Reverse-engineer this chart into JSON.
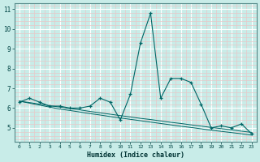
{
  "xlabel": "Humidex (Indice chaleur)",
  "bg_color": "#c8ece8",
  "line_color": "#006666",
  "major_grid_color": "#ffffff",
  "minor_grid_color": "#e8c8c8",
  "x": [
    0,
    1,
    2,
    3,
    4,
    5,
    6,
    7,
    8,
    9,
    10,
    11,
    12,
    13,
    14,
    15,
    16,
    17,
    18,
    19,
    20,
    21,
    22,
    23
  ],
  "y_main": [
    6.3,
    6.5,
    6.3,
    6.1,
    6.1,
    6.0,
    6.0,
    6.1,
    6.5,
    6.3,
    5.4,
    6.7,
    9.3,
    10.8,
    6.5,
    7.5,
    7.5,
    7.3,
    6.2,
    5.0,
    5.1,
    5.0,
    5.2,
    4.7
  ],
  "y_trend1": [
    6.35,
    6.25,
    6.15,
    6.05,
    5.95,
    5.88,
    5.8,
    5.72,
    5.65,
    5.57,
    5.5,
    5.43,
    5.36,
    5.29,
    5.22,
    5.15,
    5.08,
    5.02,
    4.95,
    4.88,
    4.82,
    4.76,
    4.7,
    4.63
  ],
  "y_trend2": [
    6.35,
    6.28,
    6.2,
    6.12,
    6.05,
    5.98,
    5.91,
    5.83,
    5.76,
    5.69,
    5.62,
    5.55,
    5.48,
    5.42,
    5.35,
    5.28,
    5.22,
    5.15,
    5.09,
    5.02,
    4.96,
    4.9,
    4.83,
    4.77
  ],
  "xlim": [
    -0.5,
    23.5
  ],
  "ylim": [
    4.3,
    11.3
  ],
  "yticks": [
    5,
    6,
    7,
    8,
    9,
    10,
    11
  ],
  "xticks": [
    0,
    1,
    2,
    3,
    4,
    5,
    6,
    7,
    8,
    9,
    10,
    11,
    12,
    13,
    14,
    15,
    16,
    17,
    18,
    19,
    20,
    21,
    22,
    23
  ]
}
